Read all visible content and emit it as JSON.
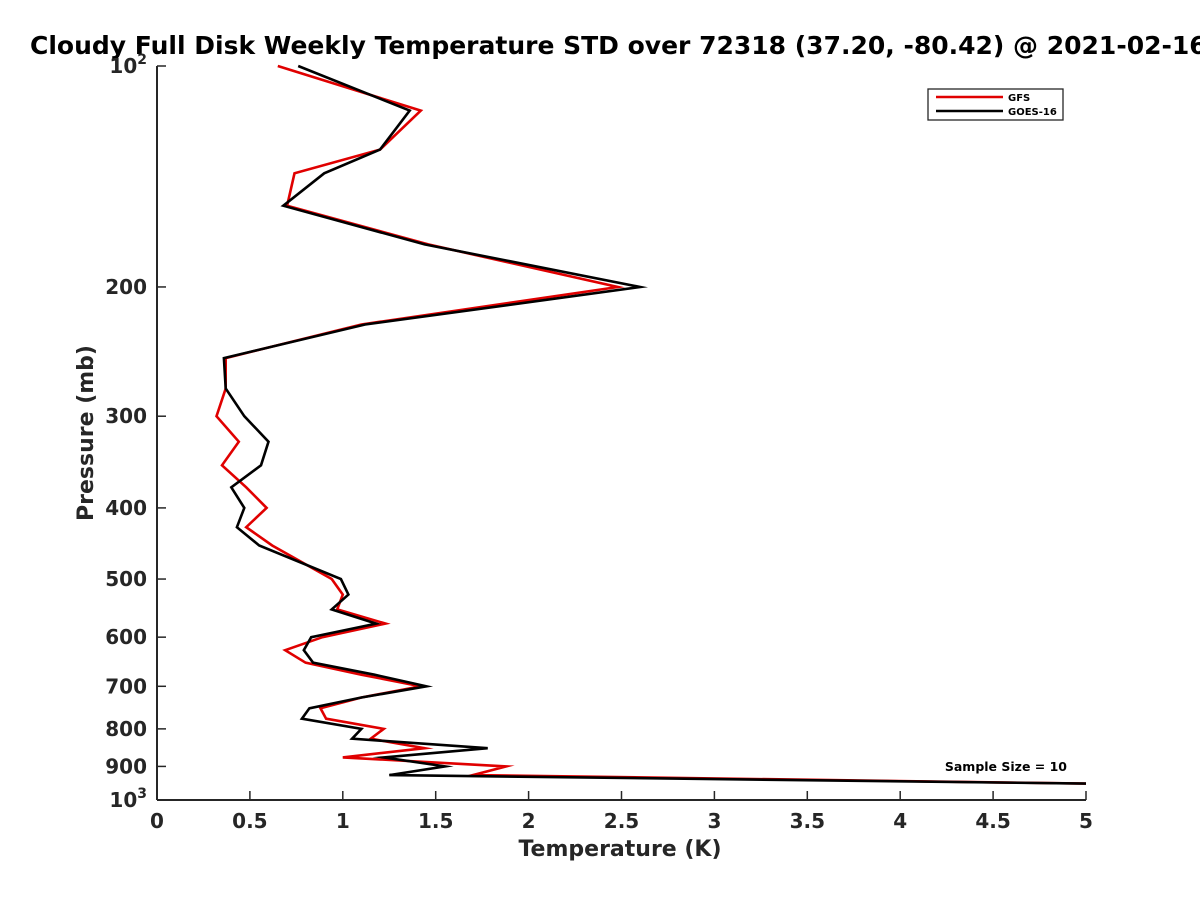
{
  "chart_data": {
    "type": "line",
    "title": "Cloudy Full Disk Weekly Temperature STD over 72318 (37.20, -80.42) @ 2021-02-16",
    "xlabel": "Temperature (K)",
    "ylabel": "Pressure (mb)",
    "xlim": [
      0,
      5
    ],
    "ylim": [
      100,
      1000
    ],
    "yscale": "log",
    "y_reversed": true,
    "xticks": [
      0,
      0.5,
      1,
      1.5,
      2,
      2.5,
      3,
      3.5,
      4,
      4.5,
      5
    ],
    "xtick_labels": [
      "0",
      "0.5",
      "1",
      "1.5",
      "2",
      "2.5",
      "3",
      "3.5",
      "4",
      "4.5",
      "5"
    ],
    "yticks": [
      100,
      200,
      300,
      400,
      500,
      600,
      700,
      800,
      900,
      1000
    ],
    "ytick_labels": [
      {
        "base": "10",
        "exp": "2"
      },
      {
        "base": "200",
        "exp": ""
      },
      {
        "base": "300",
        "exp": ""
      },
      {
        "base": "400",
        "exp": ""
      },
      {
        "base": "500",
        "exp": ""
      },
      {
        "base": "600",
        "exp": ""
      },
      {
        "base": "700",
        "exp": ""
      },
      {
        "base": "800",
        "exp": ""
      },
      {
        "base": "900",
        "exp": ""
      },
      {
        "base": "10",
        "exp": "3"
      }
    ],
    "legend_position": "top-right",
    "annotation": "Sample Size = 10",
    "series": [
      {
        "name": "GFS",
        "color": "#e00000",
        "x": [
          0.65,
          1.42,
          1.2,
          0.74,
          0.7,
          1.46,
          2.48,
          1.1,
          0.37,
          0.37,
          0.32,
          0.44,
          0.35,
          0.48,
          0.59,
          0.48,
          0.62,
          0.94,
          1.0,
          0.97,
          1.23,
          0.89,
          0.69,
          0.8,
          1.1,
          1.42,
          1.1,
          0.88,
          0.91,
          1.22,
          1.15,
          1.44,
          1.0,
          1.88,
          1.7,
          5.0
        ],
        "y": [
          100,
          115,
          130,
          140,
          155,
          175,
          200,
          225,
          250,
          275,
          300,
          325,
          350,
          375,
          400,
          425,
          450,
          500,
          525,
          550,
          575,
          600,
          625,
          650,
          675,
          700,
          725,
          750,
          775,
          800,
          825,
          850,
          875,
          900,
          925,
          950
        ]
      },
      {
        "name": "GOES-16",
        "color": "#000000",
        "x": [
          0.76,
          1.36,
          1.2,
          0.9,
          0.68,
          1.44,
          2.6,
          1.12,
          0.36,
          0.37,
          0.47,
          0.6,
          0.56,
          0.4,
          0.47,
          0.43,
          0.55,
          0.99,
          1.03,
          0.94,
          1.18,
          0.83,
          0.79,
          0.84,
          1.17,
          1.45,
          1.1,
          0.82,
          0.78,
          1.1,
          1.05,
          1.78,
          1.22,
          1.55,
          1.25,
          5.0
        ],
        "y": [
          100,
          115,
          130,
          140,
          155,
          175,
          200,
          225,
          250,
          275,
          300,
          325,
          350,
          375,
          400,
          425,
          450,
          500,
          525,
          550,
          575,
          600,
          625,
          650,
          675,
          700,
          725,
          750,
          775,
          800,
          825,
          850,
          875,
          900,
          925,
          950
        ]
      }
    ]
  }
}
